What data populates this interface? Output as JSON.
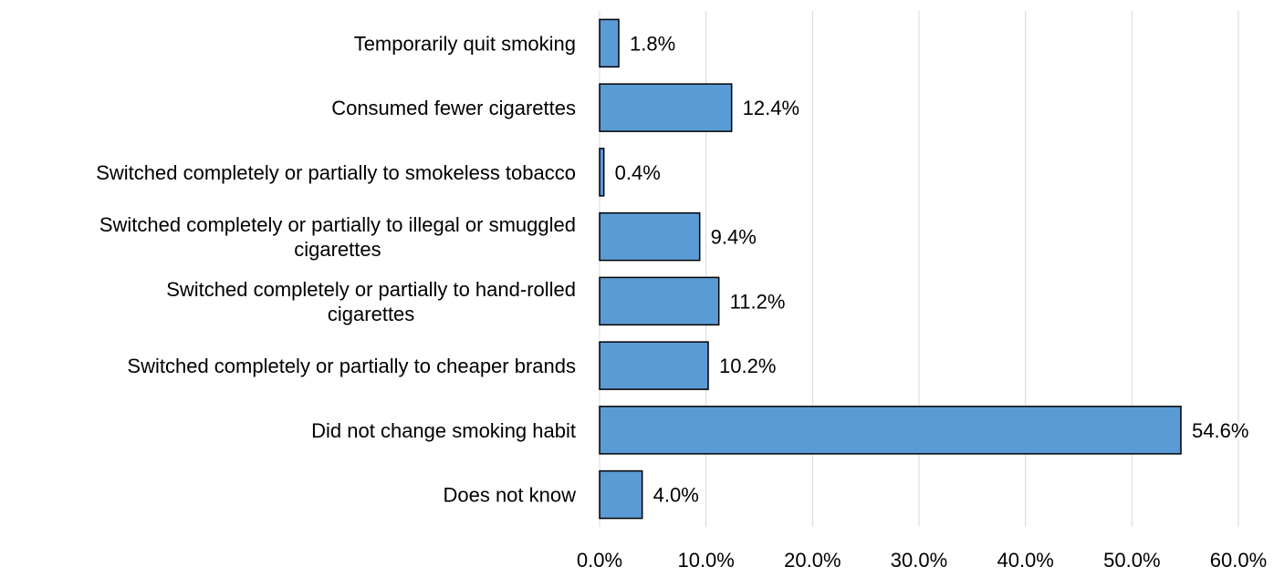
{
  "chart_data": {
    "type": "bar",
    "orientation": "horizontal",
    "title": "",
    "xlabel": "",
    "ylabel": "",
    "categories": [
      "Temporarily quit smoking",
      "Consumed fewer cigarettes",
      "Switched completely or partially to smokeless tobacco",
      "Switched completely or partially to illegal or smuggled cigarettes",
      "Switched completely or partially to hand-rolled cigarettes",
      "Switched completely or partially to cheaper brands",
      "Did not change smoking habit",
      "Does not know"
    ],
    "category_lines": [
      [
        "Temporarily quit smoking"
      ],
      [
        "Consumed fewer cigarettes"
      ],
      [
        "Switched completely or partially to smokeless tobacco"
      ],
      [
        "Switched completely or partially to illegal or smuggled",
        "cigarettes"
      ],
      [
        "Switched completely or partially to hand-rolled",
        "cigarettes"
      ],
      [
        "Switched completely or partially to cheaper brands"
      ],
      [
        "Did not change smoking habit"
      ],
      [
        "Does not know"
      ]
    ],
    "values": [
      1.8,
      12.4,
      0.4,
      9.4,
      11.2,
      10.2,
      54.6,
      4.0
    ],
    "data_labels": [
      "1.8%",
      "12.4%",
      "0.4%",
      "9.4%",
      "11.2%",
      "10.2%",
      "54.6%",
      "4.0%"
    ],
    "xlim": [
      0,
      60
    ],
    "x_ticks": [
      0,
      10,
      20,
      30,
      40,
      50,
      60
    ],
    "x_tick_labels": [
      "0.0%",
      "10.0%",
      "20.0%",
      "30.0%",
      "40.0%",
      "50.0%",
      "60.0%"
    ],
    "grid": "vertical",
    "legend": "none",
    "bar_color": "#5b9bd5",
    "bar_edge_color": "#000000",
    "grid_color": "#d9d9d9"
  }
}
